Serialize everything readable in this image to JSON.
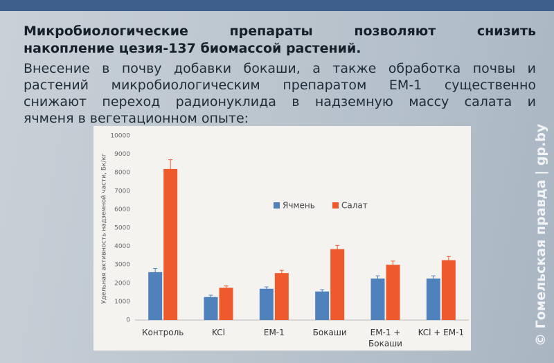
{
  "heading": [
    "Микробиологические препараты позволяют снизить",
    "накопление цезия-137 биомассой растений."
  ],
  "text": [
    "Внесение в почву добавки бокаши, а также обработка почвы и",
    "растений микробиологическим препаратом ЕМ-1 существенно",
    "снижают переход радионуклида в надземную массу салата и",
    "ячменя в вегетационном опыте:"
  ],
  "watermark": "© Гомельская правда | gp.by",
  "chart_data": {
    "type": "bar",
    "y_label": "Удельная активность надземной части, Бк/кг",
    "categories": [
      "Контроль",
      "KCl",
      "ЕМ-1",
      "Бокаши",
      "ЕМ-1 +\nБокаши",
      "KCl + ЕМ-1"
    ],
    "series": [
      {
        "name": "Ячмень",
        "color": "#4f81bd",
        "values": [
          2600,
          1250,
          1700,
          1550,
          2250,
          2250
        ],
        "errors": [
          200,
          100,
          100,
          100,
          150,
          150
        ]
      },
      {
        "name": "Салат",
        "color": "#ef5a2c",
        "values": [
          8200,
          1750,
          2550,
          3850,
          3000,
          3250
        ],
        "errors": [
          500,
          100,
          150,
          200,
          200,
          200
        ]
      }
    ],
    "ylim": [
      0,
      10000
    ],
    "yticks": [
      0,
      1000,
      2000,
      3000,
      4000,
      5000,
      6000,
      7000,
      8000,
      9000,
      10000
    ],
    "grid": false
  }
}
